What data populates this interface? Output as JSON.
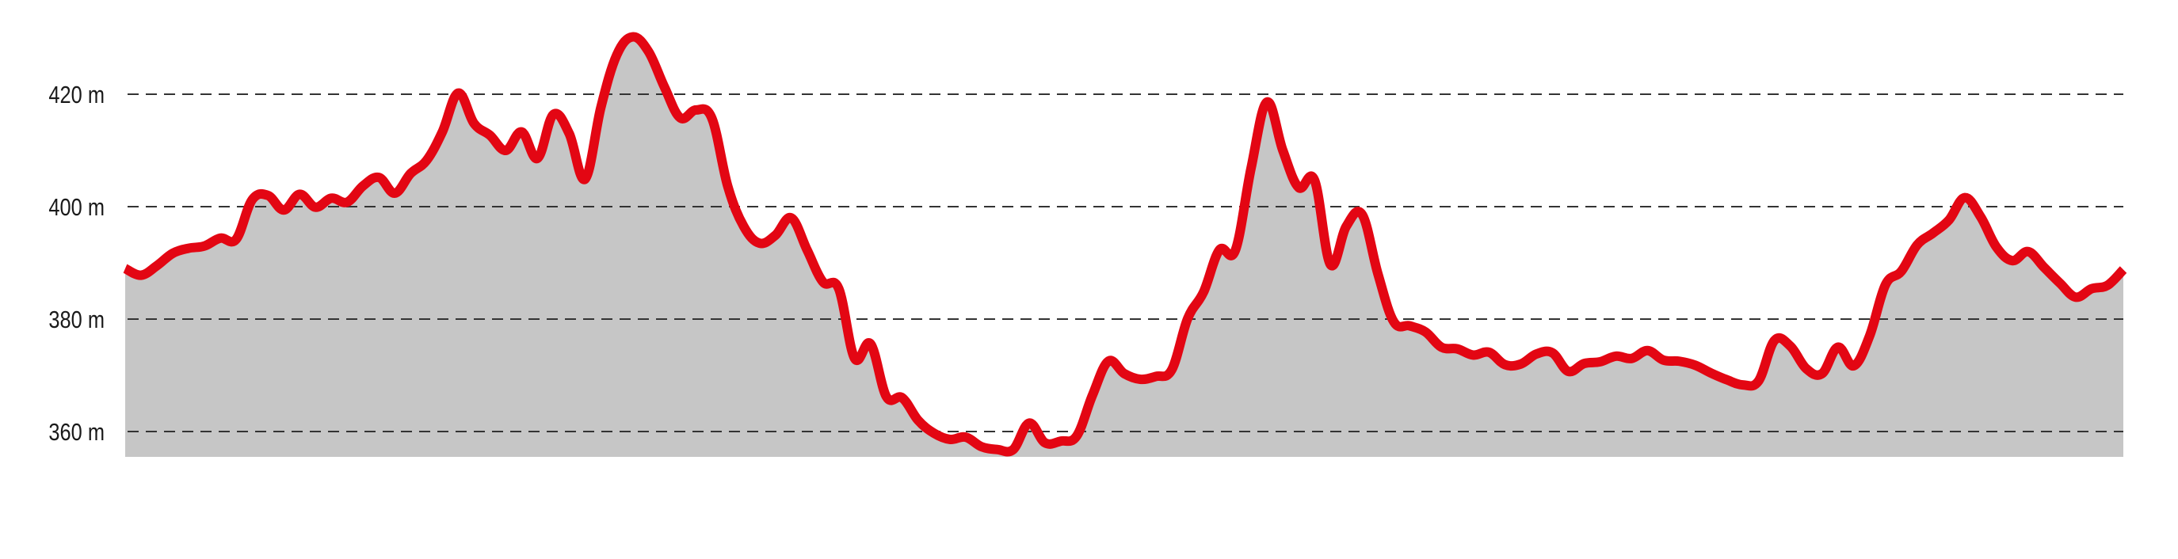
{
  "chart_data": {
    "type": "area",
    "title": "",
    "xlabel": "",
    "ylabel": "",
    "ylim": [
      355.5,
      435
    ],
    "yticks": [
      360,
      380,
      400,
      420
    ],
    "ytick_labels": [
      "360 m",
      "380 m",
      "400 m",
      "420 m"
    ],
    "grid": "horizontal dashed",
    "legend": "none",
    "colors": {
      "line": "#e30613",
      "fill": "#c6c6c6",
      "grid": "#333333"
    },
    "elevation_m": [
      389,
      387.8,
      389.5,
      391.7,
      392.6,
      393,
      394.4,
      394.2,
      401.2,
      402,
      399.4,
      402.2,
      399.9,
      401.5,
      400.8,
      403.7,
      405.2,
      402.4,
      405.9,
      408.2,
      413.3,
      420.2,
      414.8,
      412.7,
      410,
      413.3,
      408.6,
      416.4,
      413,
      404.9,
      417.7,
      427,
      430.2,
      427.6,
      421.3,
      415.8,
      417.2,
      415.7,
      403.6,
      396.5,
      393.5,
      394.9,
      398,
      392.3,
      386.6,
      385.4,
      373,
      375.6,
      366.2,
      366,
      362,
      359.7,
      358.6,
      359,
      357.3,
      356.8,
      356.8,
      361.5,
      358,
      358.3,
      359.2,
      366.5,
      372.5,
      370.3,
      369.3,
      369.8,
      371,
      380.1,
      384.8,
      392.3,
      392.2,
      406.9,
      418.6,
      410,
      403.4,
      404.7,
      389.7,
      396.5,
      398.6,
      388,
      379.5,
      378.8,
      377.7,
      375,
      374.7,
      373.6,
      374.1,
      371.9,
      372,
      373.8,
      374,
      370.7,
      372.1,
      372.4,
      373.4,
      373,
      374.4,
      372.7,
      372.5,
      371.8,
      370.4,
      369.2,
      368.3,
      369,
      376.2,
      375.2,
      371.2,
      370.3,
      375,
      371.7,
      377,
      386.1,
      388.5,
      393.2,
      395.3,
      397.6,
      401.6,
      398.2,
      392.8,
      390.4,
      392,
      389.2,
      386.4,
      383.9,
      385.4,
      386,
      388.8
    ]
  }
}
